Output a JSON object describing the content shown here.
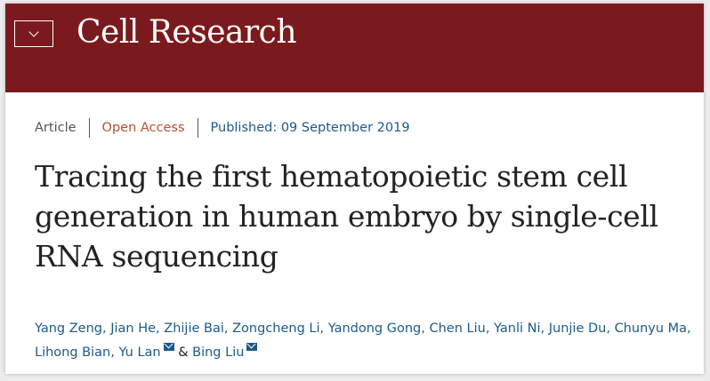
{
  "header": {
    "brand": "Cell Research",
    "menu_icon": "chevron-down-icon",
    "background_color": "#7b1a1e"
  },
  "meta": {
    "type": "Article",
    "access": "Open Access",
    "published_label": "Published:",
    "published_date": "09 September 2019"
  },
  "title": "Tracing the first hematopoietic stem cell generation in human embryo by single-cell RNA sequencing",
  "authors": [
    "Yang Zeng",
    "Jian He",
    "Zhijie Bai",
    "Zongcheng Li",
    "Yandong Gong",
    "Chen Liu",
    "Yanli Ni",
    "Junjie Du",
    "Chunyu Ma",
    "Lihong Bian",
    "Yu Lan",
    "Bing Liu"
  ],
  "author_separator": ",",
  "author_conjunction": "&",
  "corresponding_icon": "mail-icon"
}
